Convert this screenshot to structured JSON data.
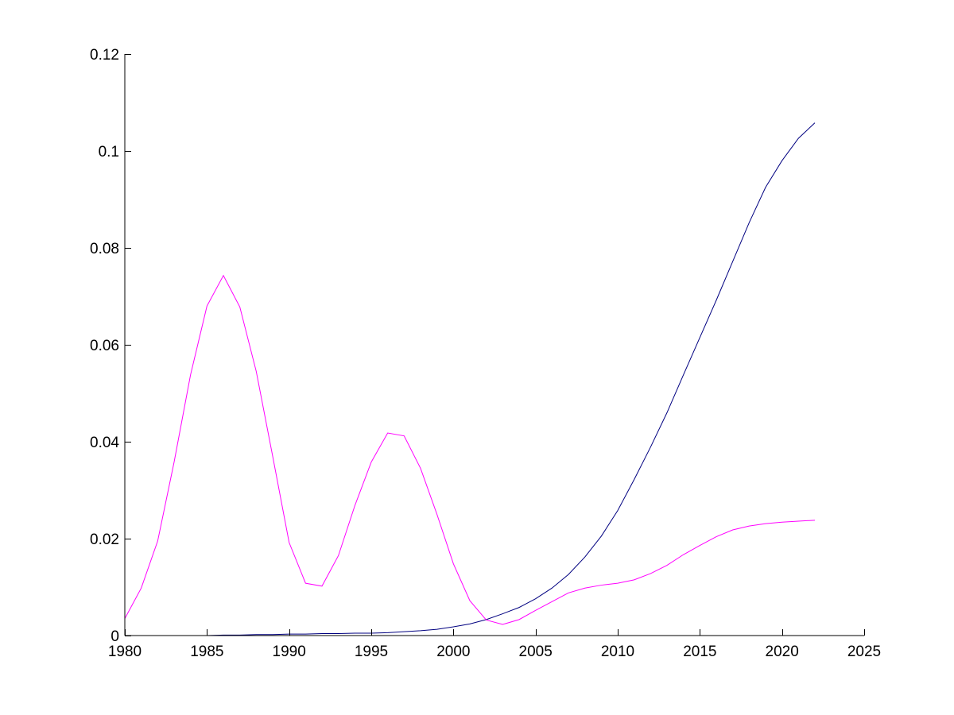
{
  "chart_data": {
    "type": "line",
    "title": "",
    "xlabel": "",
    "ylabel": "",
    "xlim": [
      1980,
      2025
    ],
    "ylim": [
      0,
      0.12
    ],
    "grid": false,
    "legend": "none",
    "x_ticks": [
      1980,
      1985,
      1990,
      1995,
      2000,
      2005,
      2010,
      2015,
      2020,
      2025
    ],
    "x_tick_labels": [
      "1980",
      "1985",
      "1990",
      "1995",
      "2000",
      "2005",
      "2010",
      "2015",
      "2020",
      "2025"
    ],
    "y_ticks": [
      0,
      0.02,
      0.04,
      0.06,
      0.08,
      0.1,
      0.12
    ],
    "y_tick_labels": [
      "0",
      "0.02",
      "0.04",
      "0.06",
      "0.08",
      "0.1",
      "0.12"
    ],
    "x": [
      1980,
      1981,
      1982,
      1983,
      1984,
      1985,
      1986,
      1987,
      1988,
      1989,
      1990,
      1991,
      1992,
      1993,
      1994,
      1995,
      1996,
      1997,
      1998,
      1999,
      2000,
      2001,
      2002,
      2003,
      2004,
      2005,
      2006,
      2007,
      2008,
      2009,
      2010,
      2011,
      2012,
      2013,
      2014,
      2015,
      2016,
      2017,
      2018,
      2019,
      2020,
      2021,
      2022
    ],
    "series": [
      {
        "color": "#000080",
        "values": [
          0,
          0,
          0,
          0,
          0,
          0,
          0.0001,
          0.0001,
          0.0002,
          0.0002,
          0.0003,
          0.0003,
          0.0004,
          0.0004,
          0.0005,
          0.0005,
          0.0006,
          0.0008,
          0.001,
          0.0013,
          0.0018,
          0.0024,
          0.0033,
          0.0045,
          0.0058,
          0.0076,
          0.0098,
          0.0126,
          0.0162,
          0.0205,
          0.0258,
          0.0322,
          0.0389,
          0.046,
          0.0538,
          0.0615,
          0.0692,
          0.0772,
          0.0852,
          0.0925,
          0.098,
          0.1026,
          0.1058
        ]
      },
      {
        "color": "#ff00ff",
        "values": [
          0.0035,
          0.0098,
          0.0195,
          0.0358,
          0.0538,
          0.068,
          0.0743,
          0.0678,
          0.0545,
          0.037,
          0.0192,
          0.0108,
          0.0102,
          0.0165,
          0.0268,
          0.0358,
          0.0418,
          0.0412,
          0.0345,
          0.025,
          0.0148,
          0.0072,
          0.0032,
          0.0023,
          0.0033,
          0.0052,
          0.007,
          0.0088,
          0.0098,
          0.0104,
          0.0108,
          0.0115,
          0.0128,
          0.0145,
          0.0167,
          0.0186,
          0.0204,
          0.0218,
          0.0226,
          0.0231,
          0.0234,
          0.0236,
          0.0238
        ]
      }
    ]
  }
}
